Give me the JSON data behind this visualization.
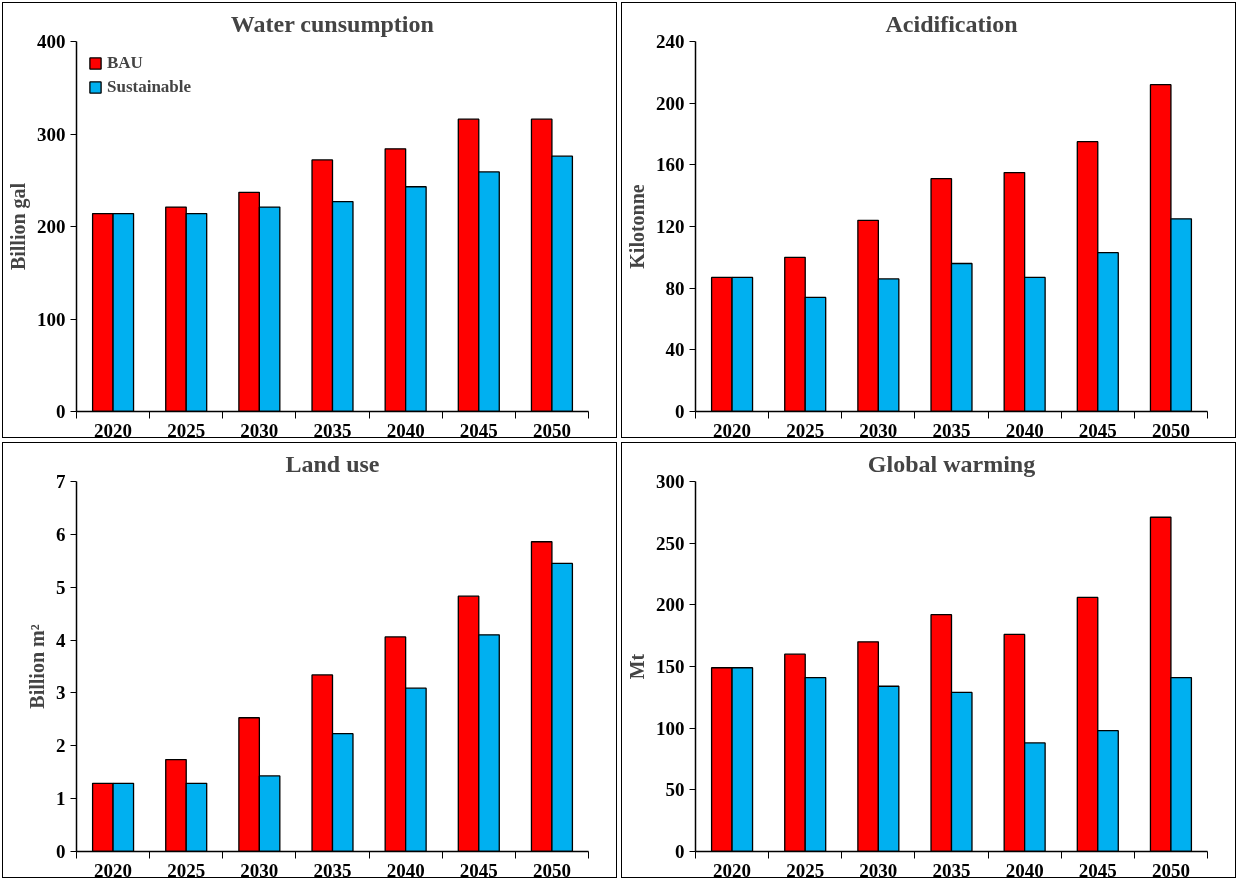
{
  "chart_data": [
    {
      "type": "bar",
      "title": "Water cunsumption",
      "ylabel": "Billion gal",
      "categories": [
        "2020",
        "2025",
        "2030",
        "2035",
        "2040",
        "2045",
        "2050"
      ],
      "ylim": [
        0,
        400
      ],
      "yticks": [
        0,
        100,
        200,
        300,
        400
      ],
      "legend": "top left",
      "grid": false,
      "series": [
        {
          "name": "BAU",
          "color": "#ff0000",
          "values": [
            214,
            221,
            237,
            272,
            284,
            316,
            316
          ]
        },
        {
          "name": "Sustainable",
          "color": "#00b0f0",
          "values": [
            214,
            214,
            221,
            227,
            243,
            259,
            276
          ]
        }
      ]
    },
    {
      "type": "bar",
      "title": "Acidification",
      "ylabel": "Kilotonne",
      "categories": [
        "2020",
        "2025",
        "2030",
        "2035",
        "2040",
        "2045",
        "2050"
      ],
      "ylim": [
        0,
        240
      ],
      "yticks": [
        0,
        40,
        80,
        120,
        160,
        200,
        240
      ],
      "grid": false,
      "series": [
        {
          "color": "#ff0000",
          "values": [
            87,
            100,
            124,
            151,
            155,
            175,
            212
          ]
        },
        {
          "color": "#00b0f0",
          "values": [
            87,
            74,
            86,
            96,
            87,
            103,
            125
          ]
        }
      ]
    },
    {
      "type": "bar",
      "title": "Land use",
      "ylabel": "Billion m²",
      "categories": [
        "2020",
        "2025",
        "2030",
        "2035",
        "2040",
        "2045",
        "2050"
      ],
      "ylim": [
        0,
        7
      ],
      "yticks": [
        0,
        1,
        2,
        3,
        4,
        5,
        6,
        7
      ],
      "grid": false,
      "series": [
        {
          "color": "#ff0000",
          "values": [
            1.29,
            1.74,
            2.53,
            3.34,
            4.06,
            4.83,
            5.86
          ]
        },
        {
          "color": "#00b0f0",
          "values": [
            1.29,
            1.29,
            1.43,
            2.23,
            3.09,
            4.1,
            5.45
          ]
        }
      ]
    },
    {
      "type": "bar",
      "title": "Global warming",
      "ylabel": "Mt",
      "categories": [
        "2020",
        "2025",
        "2030",
        "2035",
        "2040",
        "2045",
        "2050"
      ],
      "ylim": [
        0,
        300
      ],
      "yticks": [
        0,
        50,
        100,
        150,
        200,
        250,
        300
      ],
      "grid": false,
      "series": [
        {
          "color": "#ff0000",
          "values": [
            149,
            160,
            170,
            192,
            176,
            206,
            271
          ]
        },
        {
          "color": "#00b0f0",
          "values": [
            149,
            141,
            134,
            129,
            88,
            98,
            141
          ]
        }
      ]
    }
  ]
}
